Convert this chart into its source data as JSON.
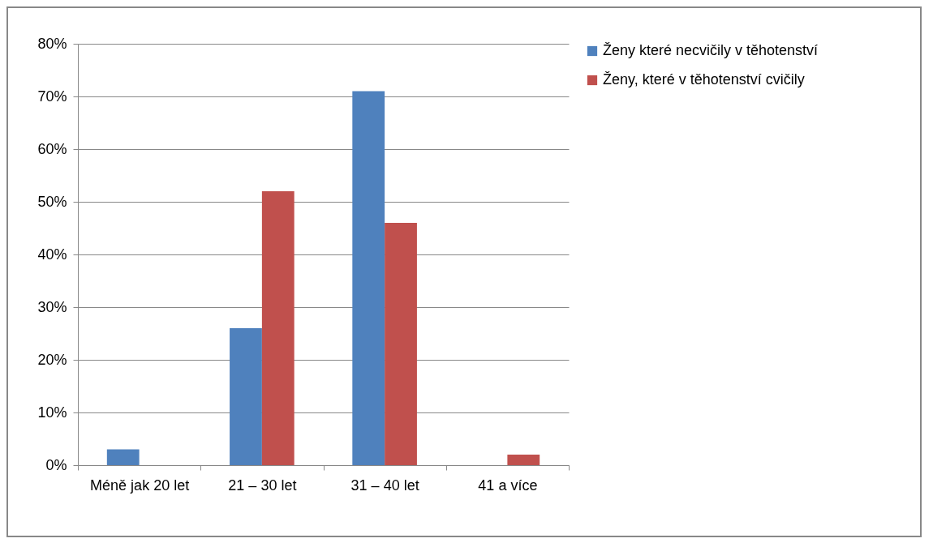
{
  "chart_data": {
    "type": "bar",
    "categories": [
      "Méně jak 20 let",
      "21 – 30 let",
      "31 – 40 let",
      "41 a více"
    ],
    "series": [
      {
        "name": "Ženy které necvičily v těhotenství",
        "color": "#4f81bd",
        "values": [
          3,
          26,
          71,
          0
        ]
      },
      {
        "name": "Ženy, které v těhotenství cvičily",
        "color": "#c0504d",
        "values": [
          0,
          52,
          46,
          2
        ]
      }
    ],
    "ylim": [
      0,
      80
    ],
    "yticks": [
      {
        "value": 0,
        "label": "0%"
      },
      {
        "value": 10,
        "label": "10%"
      },
      {
        "value": 20,
        "label": "20%"
      },
      {
        "value": 30,
        "label": "30%"
      },
      {
        "value": 40,
        "label": "40%"
      },
      {
        "value": 50,
        "label": "50%"
      },
      {
        "value": 60,
        "label": "60%"
      },
      {
        "value": 70,
        "label": "70%"
      },
      {
        "value": 80,
        "label": "80%"
      }
    ],
    "grid": "y",
    "legend": "right"
  }
}
